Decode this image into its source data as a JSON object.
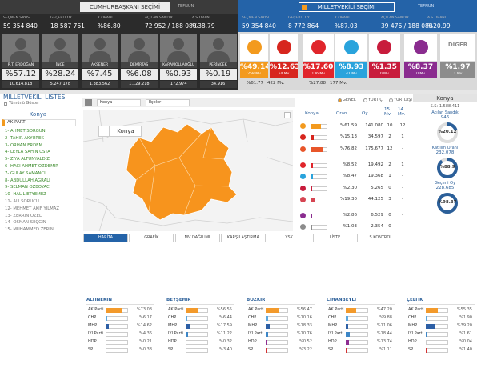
{
  "header": {
    "left_title": "CUMHURBAŞKANI SEÇİMİ",
    "left_logo": "TEFNUN",
    "right_title": "MİLLETVEKİLİ SEÇİMİ",
    "right_logo": "TEFNUN"
  },
  "president_stats": [
    {
      "label": "SEÇMEN SAYISI",
      "value": "59 354 840"
    },
    {
      "label": "GEÇERLİ OY",
      "value": "18 587 761"
    },
    {
      "label": "K.ORANI",
      "value": "%86.80"
    },
    {
      "label": "AÇILAN SANDIK",
      "value": "72 952 / 188 080"
    },
    {
      "label": "A.S.ORANI",
      "value": "%38.79"
    }
  ],
  "candidates": [
    {
      "name": "R.T. ERDOĞAN",
      "share": "%57.12",
      "votes": "10.614.818"
    },
    {
      "name": "İNCE",
      "share": "%28.24",
      "votes": "5.247.178"
    },
    {
      "name": "AKŞENER",
      "share": "%7.45",
      "votes": "1.383.562"
    },
    {
      "name": "DEMİRTAŞ",
      "share": "%6.08",
      "votes": "1.129.218"
    },
    {
      "name": "KARAMOLLAOĞLU",
      "share": "%0.93",
      "votes": "172.974"
    },
    {
      "name": "PERİNÇEK",
      "share": "%0.19",
      "votes": "34.916"
    }
  ],
  "parliament_stats": [
    {
      "label": "SEÇMEN SAYISI",
      "value": "59 354 840"
    },
    {
      "label": "GEÇERLİ OY",
      "value": "8 772 864"
    },
    {
      "label": "K.ORANI",
      "value": "%87.03"
    },
    {
      "label": "AÇILAN SANDIK",
      "value": "39 476 / 188 080"
    },
    {
      "label": "A.S.ORANI",
      "value": "%20.99"
    }
  ],
  "alliances": [
    {
      "parties": [
        {
          "color": "#f39a1e",
          "share": "%49.14",
          "seats": "258 Mv"
        },
        {
          "color": "#d7261e",
          "share": "%12.63",
          "seats": "54 Mv"
        }
      ],
      "total_share": "%61.77",
      "total_seats": "422 Mv."
    },
    {
      "parties": [
        {
          "color": "#e0252b",
          "share": "%17.60",
          "seats": "136 Mv"
        },
        {
          "color": "#29a3dc",
          "share": "%8.93",
          "seats": "41 Mv"
        },
        {
          "color": "#c81c3c",
          "share": "%1.35",
          "seats": "0 Mv"
        }
      ],
      "total_share": "%27.88",
      "total_seats": "177 Mv."
    },
    {
      "parties": [
        {
          "color": "#8a2c8f",
          "share": "%8.37",
          "seats": "0 Mv"
        }
      ]
    },
    {
      "parties": [
        {
          "name": "DİĞER",
          "color": "#8c8c8c",
          "share": "%1.97",
          "seats": "1 Mv"
        }
      ]
    }
  ],
  "mv_list": {
    "title": "MİLLETVEKİLİ LİSTESİ",
    "show_all": "Tümünü Göster",
    "province": "Konya",
    "party": "AK PARTİ",
    "names": [
      "1- AHMET SORGUN",
      "2- TAHİR AKYÜREK",
      "3- ORHAN ERDEM",
      "4- LEYLA ŞAHİN USTA",
      "5- ZİYA ALTUNYALDIZ",
      "6- HACI AHMET ÖZDEMİR",
      "7- GÜLAY SAMANCI",
      "8- ABDULLAH AĞRALI",
      "9- SELMAN ÖZBOYACI",
      "10- HALİL ETYEMEZ",
      "11- ALİ SORUCU",
      "12- MEHMET AKİF YILMAZ",
      "13- ZERRİN ÖZEL",
      "14- OSMAN SEÇGİN",
      "15- MUHAMMED ZERİN"
    ],
    "elected": 10
  },
  "map": {
    "province_select": "Konya",
    "district_select": "İlçeler",
    "label": "Konya",
    "tabs": [
      "HARİTA",
      "GRAFİK",
      "MV DAĞILIMI",
      "KARŞILAŞTIRMA",
      "YSK",
      "LİSTE",
      "S.KONTROL"
    ]
  },
  "filters": [
    "GENEL",
    "YURTİÇİ",
    "YURTDIŞI"
  ],
  "results_table": {
    "headers": [
      "Konya",
      "Oran",
      "Oy",
      "15 Mv.",
      "14 Mv."
    ],
    "xlim": [
      0,
      100
    ],
    "rows": [
      {
        "color": "#f39a1e",
        "share": 61.59,
        "share_label": "%61.59",
        "votes": "141.080",
        "mv15": "10",
        "mv14": "12"
      },
      {
        "color": "#d7261e",
        "share": 15.13,
        "share_label": "%15.13",
        "votes": "34.597",
        "mv15": "2",
        "mv14": "1"
      },
      {
        "color": "#e8562a",
        "share": 76.82,
        "share_label": "%76.82",
        "votes": "175.677",
        "mv15": "12",
        "mv14": "-"
      },
      {
        "color": "#e0252b",
        "share": 8.52,
        "share_label": "%8.52",
        "votes": "19.492",
        "mv15": "2",
        "mv14": "1"
      },
      {
        "color": "#29a3dc",
        "share": 8.47,
        "share_label": "%8.47",
        "votes": "19.368",
        "mv15": "1",
        "mv14": "-"
      },
      {
        "color": "#c81c3c",
        "share": 2.3,
        "share_label": "%2.30",
        "votes": "5.265",
        "mv15": "0",
        "mv14": "-"
      },
      {
        "color": "#d64552",
        "share": 19.3,
        "share_label": "%19.30",
        "votes": "44.125",
        "mv15": "3",
        "mv14": "-"
      },
      {
        "color": "#8a2c8f",
        "share": 2.86,
        "share_label": "%2.86",
        "votes": "6.529",
        "mv15": "0",
        "mv14": "-"
      },
      {
        "color": "#8c8c8c",
        "share": 1.03,
        "share_label": "%1.03",
        "votes": "2.354",
        "mv15": "0",
        "mv14": "-"
      }
    ]
  },
  "province_panel": {
    "title": "Konya",
    "voters": "S.S: 1.588.411",
    "range": [
      0,
      100
    ],
    "items": [
      {
        "label": "Açılan Sandık",
        "count": "946",
        "value": 20.12,
        "value_label": "%20.12"
      },
      {
        "label": "Katılım Oranı",
        "count": "232.078",
        "value": 88.9,
        "value_label": "%88.9"
      },
      {
        "label": "Geçerli Oy",
        "count": "228.685",
        "value": 98.37,
        "value_label": "%98.37"
      }
    ]
  },
  "district_results": {
    "type": "bar",
    "categories": [
      "AK Parti",
      "CHP",
      "MHP",
      "İYİ Parti",
      "HDP",
      "SP"
    ],
    "colors": [
      "#f39a2b",
      "#5ba8e0",
      "#2d5fa5",
      "#3d86c6",
      "#8e2d91",
      "#d33333"
    ],
    "xlim": [
      0,
      100
    ],
    "districts": [
      {
        "name": "ALTINEKİN",
        "values": [
          73.08,
          6.17,
          14.62,
          4.36,
          0.21,
          0.38
        ],
        "value_labels": [
          "%73.08",
          "%6.17",
          "%14.62",
          "%4.36",
          "%0.21",
          "%0.38"
        ]
      },
      {
        "name": "BEYŞEHİR",
        "values": [
          56.55,
          6.44,
          17.59,
          11.22,
          0.32,
          3.4
        ],
        "value_labels": [
          "%56.55",
          "%6.44",
          "%17.59",
          "%11.22",
          "%0.32",
          "%3.40"
        ]
      },
      {
        "name": "BOZKIR",
        "values": [
          56.47,
          10.16,
          18.33,
          10.76,
          0.52,
          3.22
        ],
        "value_labels": [
          "%56.47",
          "%10.16",
          "%18.33",
          "%10.76",
          "%0.52",
          "%3.22"
        ]
      },
      {
        "name": "CİHANBEYLİ",
        "values": [
          47.2,
          9.88,
          11.06,
          18.44,
          13.74,
          1.11
        ],
        "value_labels": [
          "%47.20",
          "%9.88",
          "%11.06",
          "%18.44",
          "%13.74",
          "%1.11"
        ]
      },
      {
        "name": "ÇELTİK",
        "values": [
          55.35,
          1.9,
          39.2,
          1.61,
          0.04,
          1.4
        ],
        "value_labels": [
          "%55.35",
          "%1.90",
          "%39.20",
          "%1.61",
          "%0.04",
          "%1.40"
        ]
      }
    ]
  }
}
